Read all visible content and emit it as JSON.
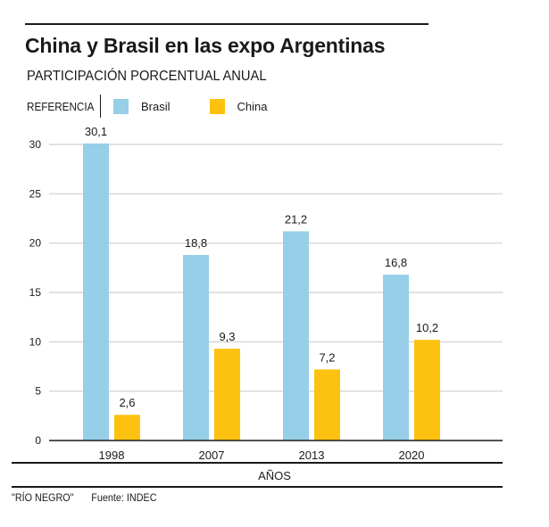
{
  "header": {
    "title": "China y Brasil en las expo Argentinas",
    "subtitle": "PARTICIPACIÓN PORCENTUAL ANUAL"
  },
  "legend": {
    "label": "REFERENCIA",
    "items": [
      {
        "name": "Brasil",
        "color": "#97cfe8"
      },
      {
        "name": "China",
        "color": "#fdc20f"
      }
    ]
  },
  "footer": {
    "credit": "\"RÍO NEGRO\"",
    "source": "Fuente: INDEC"
  },
  "chart_data": {
    "type": "bar",
    "title": "China y Brasil en las expo Argentinas",
    "subtitle": "PARTICIPACIÓN PORCENTUAL ANUAL",
    "xlabel": "AÑOS",
    "ylabel": "",
    "categories": [
      "1998",
      "2007",
      "2013",
      "2020"
    ],
    "series": [
      {
        "name": "Brasil",
        "color": "#97cfe8",
        "values": [
          30.1,
          18.8,
          21.2,
          16.8
        ],
        "labels": [
          "30,1",
          "18,8",
          "21,2",
          "16,8"
        ]
      },
      {
        "name": "China",
        "color": "#fdc20f",
        "values": [
          2.6,
          9.3,
          7.2,
          10.2
        ],
        "labels": [
          "2,6",
          "9,3",
          "7,2",
          "10,2"
        ]
      }
    ],
    "ylim": [
      0,
      30
    ],
    "yticks": [
      0,
      5,
      10,
      15,
      20,
      25,
      30
    ],
    "grid": true,
    "legend_position": "top-left"
  }
}
